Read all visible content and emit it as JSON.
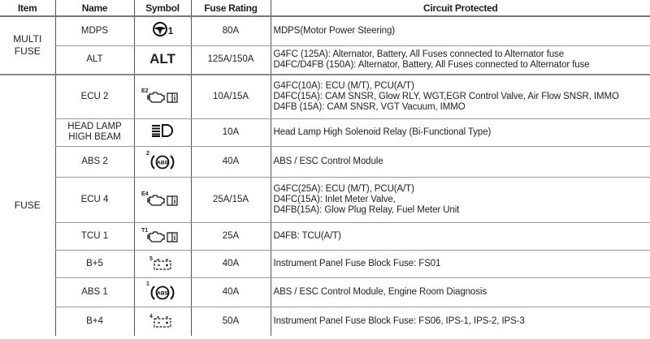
{
  "headers": {
    "item": "Item",
    "name": "Name",
    "symbol": "Symbol",
    "rating": "Fuse Rating",
    "circuit": "Circuit Protected"
  },
  "groups": [
    {
      "item": "MULTI\nFUSE",
      "rows": [
        {
          "name": "MDPS",
          "symbol": {
            "icon": "steering-wheel-icon",
            "suffix": "1"
          },
          "rating": "80A",
          "circuit": [
            "MDPS(Motor Power Steering)"
          ]
        },
        {
          "name": "ALT",
          "symbol": {
            "icon": "text",
            "text": "ALT"
          },
          "rating": "125A/150A",
          "circuit": [
            "G4FC (125A): Alternator, Battery,  All Fuses connected to Alternator fuse",
            "D4FC/D4FB (150A): Alternator, Battery,  All Fuses connected to Alternator fuse"
          ]
        }
      ]
    },
    {
      "item": "FUSE",
      "rows": [
        {
          "name": "ECU 2",
          "symbol": {
            "icon": "engine-check-manual-icon",
            "sup": "E2"
          },
          "rating": "10A/15A",
          "circuit": [
            "G4FC(10A): ECU (M/T), PCU(A/T)",
            "D4FC(15A): CAM SNSR, Glow RLY, WGT,EGR Control Valve, Air Flow SNSR, IMMO",
            "D4FB (15A): CAM SNSR, VGT Vacuum, IMMO"
          ]
        },
        {
          "name": "HEAD LAMP\nHIGH BEAM",
          "symbol": {
            "icon": "high-beam-icon"
          },
          "rating": "10A",
          "circuit": [
            "Head Lamp High Solenoid Relay (Bi-Functional Type)"
          ]
        },
        {
          "name": "ABS 2",
          "symbol": {
            "icon": "abs-icon",
            "sup": "2"
          },
          "rating": "40A",
          "circuit": [
            "ABS / ESC Control Module"
          ]
        },
        {
          "name": "ECU 4",
          "symbol": {
            "icon": "engine-check-manual-icon",
            "sup": "E4"
          },
          "rating": "25A/15A",
          "circuit": [
            "G4FC(25A): ECU (M/T), PCU(A/T)",
            "D4FC(15A): Inlet Meter Valve,",
            "D4FB(15A): Glow Plug Relay, Fuel Meter Unit"
          ]
        },
        {
          "name": "TCU 1",
          "symbol": {
            "icon": "engine-check-manual-icon",
            "sup": "T1"
          },
          "rating": "25A",
          "circuit": [
            "D4FB: TCU(A/T)"
          ]
        },
        {
          "name": "B+5",
          "symbol": {
            "icon": "battery-icon",
            "sup": "5"
          },
          "rating": "40A",
          "circuit": [
            "Instrument Panel Fuse Block Fuse: FS01"
          ]
        },
        {
          "name": "ABS 1",
          "symbol": {
            "icon": "abs-icon",
            "sup": "1"
          },
          "rating": "40A",
          "circuit": [
            "ABS / ESC Control Module, Engine Room Diagnosis"
          ]
        },
        {
          "name": "B+4",
          "symbol": {
            "icon": "battery-icon",
            "sup": "4"
          },
          "rating": "50A",
          "circuit": [
            "Instrument Panel Fuse Block Fuse: FS06, IPS-1, IPS-2, IPS-3"
          ]
        }
      ]
    }
  ]
}
